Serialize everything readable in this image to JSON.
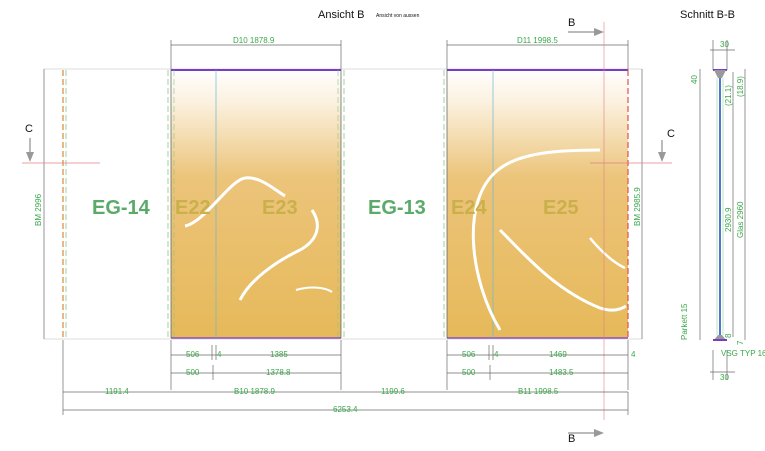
{
  "title": "Ansicht B",
  "subtitle": "Ansicht von aussen",
  "section_title": "Schnitt B-B",
  "markers": {
    "b_top": "B",
    "b_bottom": "B",
    "c_left": "C",
    "c_right": "C"
  },
  "labels": {
    "eg14": "EG-14",
    "e22": "E22",
    "e23": "E23",
    "eg13": "EG-13",
    "e24": "E24",
    "e25": "E25"
  },
  "dims": {
    "d10": "D10 1878.9",
    "d11": "D11 1998.5",
    "bm_left": "BM 2996",
    "bm_right": "BM 2985.9",
    "r1_506a": "506",
    "r1_4a": "4",
    "r1_1385": "1385",
    "r1_506b": "506",
    "r1_4b": "4",
    "r1_1469": "1469",
    "r1_4c": "4",
    "r2_500a": "500",
    "r2_1378": "1378.8",
    "r2_500b": "500",
    "r2_1483": "1483.5",
    "r3_1191": "1191.4",
    "r3_b10": "B10 1878.9",
    "r3_1199": "1199.6",
    "r3_b11": "B11 1998.5",
    "total": "6253.4"
  },
  "section_dims": {
    "top30": "30",
    "v40": "40",
    "v189": "(18.9)",
    "v211": "(21.1)",
    "v2930": "2930.9",
    "glas": "Glas 2960",
    "v7": "7",
    "v8": "8",
    "parkett": "Parkett 15",
    "bot30": "30",
    "vsg": "VSG TYP 16"
  },
  "colors": {
    "glass": "#e6b95a",
    "dim": "#3aa84a",
    "frame_top": "#7a3cc8",
    "sash": "#4a7bd0"
  }
}
